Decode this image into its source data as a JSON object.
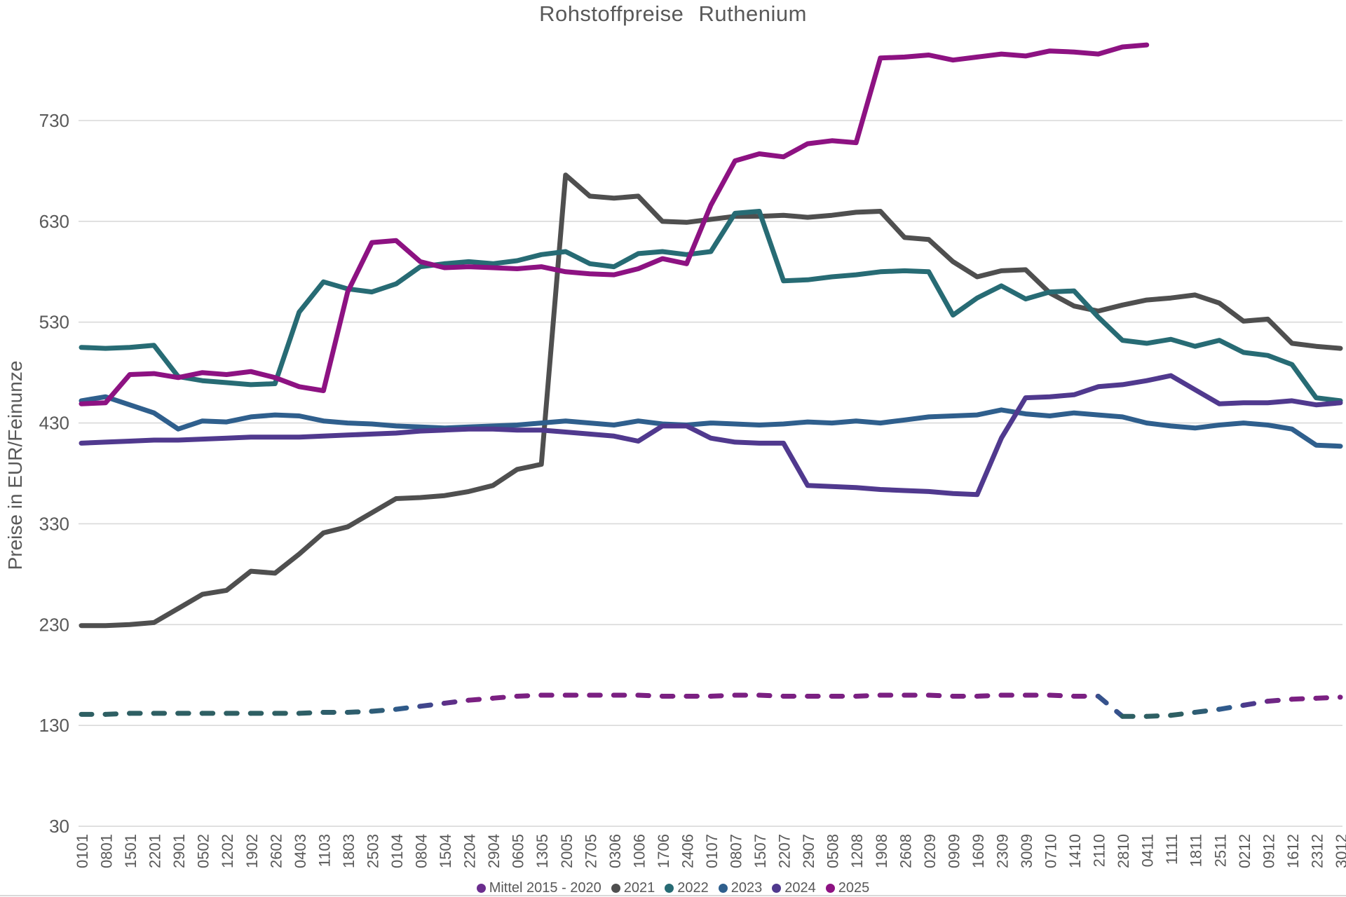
{
  "title": "Rohstoffpreise Ruthenium",
  "y_axis_title": "Preise in EUR/Feinunze",
  "colors": {
    "background": "#ffffff",
    "grid": "#d9d9d9",
    "axis_text": "#595959",
    "title_text": "#595959"
  },
  "legend": [
    "Mittel 2015 - 2020",
    "2021",
    "2022",
    "2023",
    "2024",
    "2025"
  ],
  "chart_data": {
    "type": "line",
    "title": "Rohstoffpreise Ruthenium",
    "xlabel": "",
    "ylabel": "Preise in EUR/Feinunze",
    "grid": true,
    "legend_position": "bottom",
    "ylim": [
      30,
      850
    ],
    "yticks": [
      30,
      130,
      230,
      330,
      430,
      530,
      630,
      730
    ],
    "x_tick_labels": [
      "0101",
      "0801",
      "1501",
      "2201",
      "2901",
      "0502",
      "1202",
      "1902",
      "2602",
      "0403",
      "1103",
      "1803",
      "2503",
      "0104",
      "0804",
      "1504",
      "2204",
      "2904",
      "0605",
      "1305",
      "2005",
      "2705",
      "0306",
      "1006",
      "1706",
      "2406",
      "0107",
      "0807",
      "1507",
      "2207",
      "2907",
      "0508",
      "1208",
      "1908",
      "2608",
      "0209",
      "0909",
      "1609",
      "2309",
      "3009",
      "0710",
      "1410",
      "2110",
      "2810",
      "0411",
      "1111",
      "1811",
      "2511",
      "0212",
      "0912",
      "1612",
      "2312",
      "3012"
    ],
    "series": [
      {
        "name": "Mittel 2015 - 2020",
        "line_style": "dashed",
        "color_mode": "by-value",
        "legend_color": "#6b2d8e",
        "color_stops": [
          {
            "value": 142,
            "color": "#2e5f63"
          },
          {
            "value": 148,
            "color": "#2f5a8c"
          },
          {
            "value": 152,
            "color": "#4c3a8c"
          },
          {
            "value": 156,
            "color": "#7b2082"
          }
        ],
        "values": [
          141,
          141,
          142,
          142,
          142,
          142,
          142,
          142,
          142,
          142,
          143,
          143,
          144,
          146,
          149,
          152,
          155,
          157,
          159,
          160,
          160,
          160,
          160,
          160,
          159,
          159,
          159,
          160,
          160,
          159,
          159,
          159,
          159,
          160,
          160,
          160,
          159,
          159,
          160,
          160,
          160,
          159,
          159,
          139,
          139,
          140,
          143,
          146,
          150,
          154,
          156,
          157,
          158
        ]
      },
      {
        "name": "2021",
        "line_style": "solid",
        "color": "#4f4f4f",
        "values": [
          229,
          229,
          230,
          232,
          246,
          260,
          264,
          283,
          281,
          300,
          321,
          327,
          341,
          355,
          356,
          358,
          362,
          368,
          384,
          389,
          676,
          655,
          653,
          655,
          630,
          629,
          632,
          635,
          635,
          636,
          634,
          636,
          639,
          640,
          614,
          612,
          590,
          575,
          581,
          582,
          559,
          546,
          541,
          547,
          552,
          554,
          557,
          549,
          531,
          533,
          509,
          506,
          504
        ]
      },
      {
        "name": "2022",
        "line_style": "solid",
        "color": "#276b74",
        "values": [
          505,
          504,
          505,
          507,
          476,
          472,
          470,
          468,
          469,
          540,
          570,
          563,
          560,
          568,
          585,
          588,
          590,
          588,
          591,
          597,
          600,
          588,
          585,
          598,
          600,
          597,
          600,
          638,
          640,
          571,
          572,
          575,
          577,
          580,
          581,
          580,
          537,
          554,
          566,
          553,
          560,
          561,
          535,
          512,
          509,
          513,
          506,
          512,
          500,
          497,
          488,
          455,
          452
        ]
      },
      {
        "name": "2023",
        "line_style": "solid",
        "color": "#2f5f8d",
        "values": [
          452,
          456,
          448,
          440,
          424,
          432,
          431,
          436,
          438,
          437,
          432,
          430,
          429,
          427,
          426,
          425,
          426,
          427,
          428,
          430,
          432,
          430,
          428,
          432,
          429,
          428,
          430,
          429,
          428,
          429,
          431,
          430,
          432,
          430,
          433,
          436,
          437,
          438,
          443,
          439,
          437,
          440,
          438,
          436,
          430,
          427,
          425,
          428,
          430,
          428,
          424,
          408,
          407
        ]
      },
      {
        "name": "2024",
        "line_style": "solid",
        "color": "#50398e",
        "values": [
          410,
          411,
          412,
          413,
          413,
          414,
          415,
          416,
          416,
          416,
          417,
          418,
          419,
          420,
          422,
          423,
          424,
          424,
          423,
          423,
          421,
          419,
          417,
          412,
          427,
          427,
          415,
          411,
          410,
          410,
          368,
          367,
          366,
          364,
          363,
          362,
          360,
          359,
          415,
          455,
          456,
          458,
          466,
          468,
          472,
          477,
          463,
          449,
          450,
          450,
          452,
          448,
          450
        ]
      },
      {
        "name": "2025",
        "line_style": "solid",
        "color": "#8d1282",
        "values": [
          449,
          450,
          478,
          479,
          475,
          480,
          478,
          481,
          475,
          466,
          462,
          560,
          609,
          611,
          590,
          584,
          585,
          584,
          583,
          585,
          580,
          578,
          577,
          583,
          593,
          588,
          646,
          690,
          697,
          694,
          707,
          710,
          708,
          792,
          793,
          795,
          790,
          793,
          796,
          794,
          799,
          798,
          796,
          803,
          805,
          null,
          null,
          null,
          null,
          null,
          null,
          null,
          null
        ]
      }
    ]
  }
}
